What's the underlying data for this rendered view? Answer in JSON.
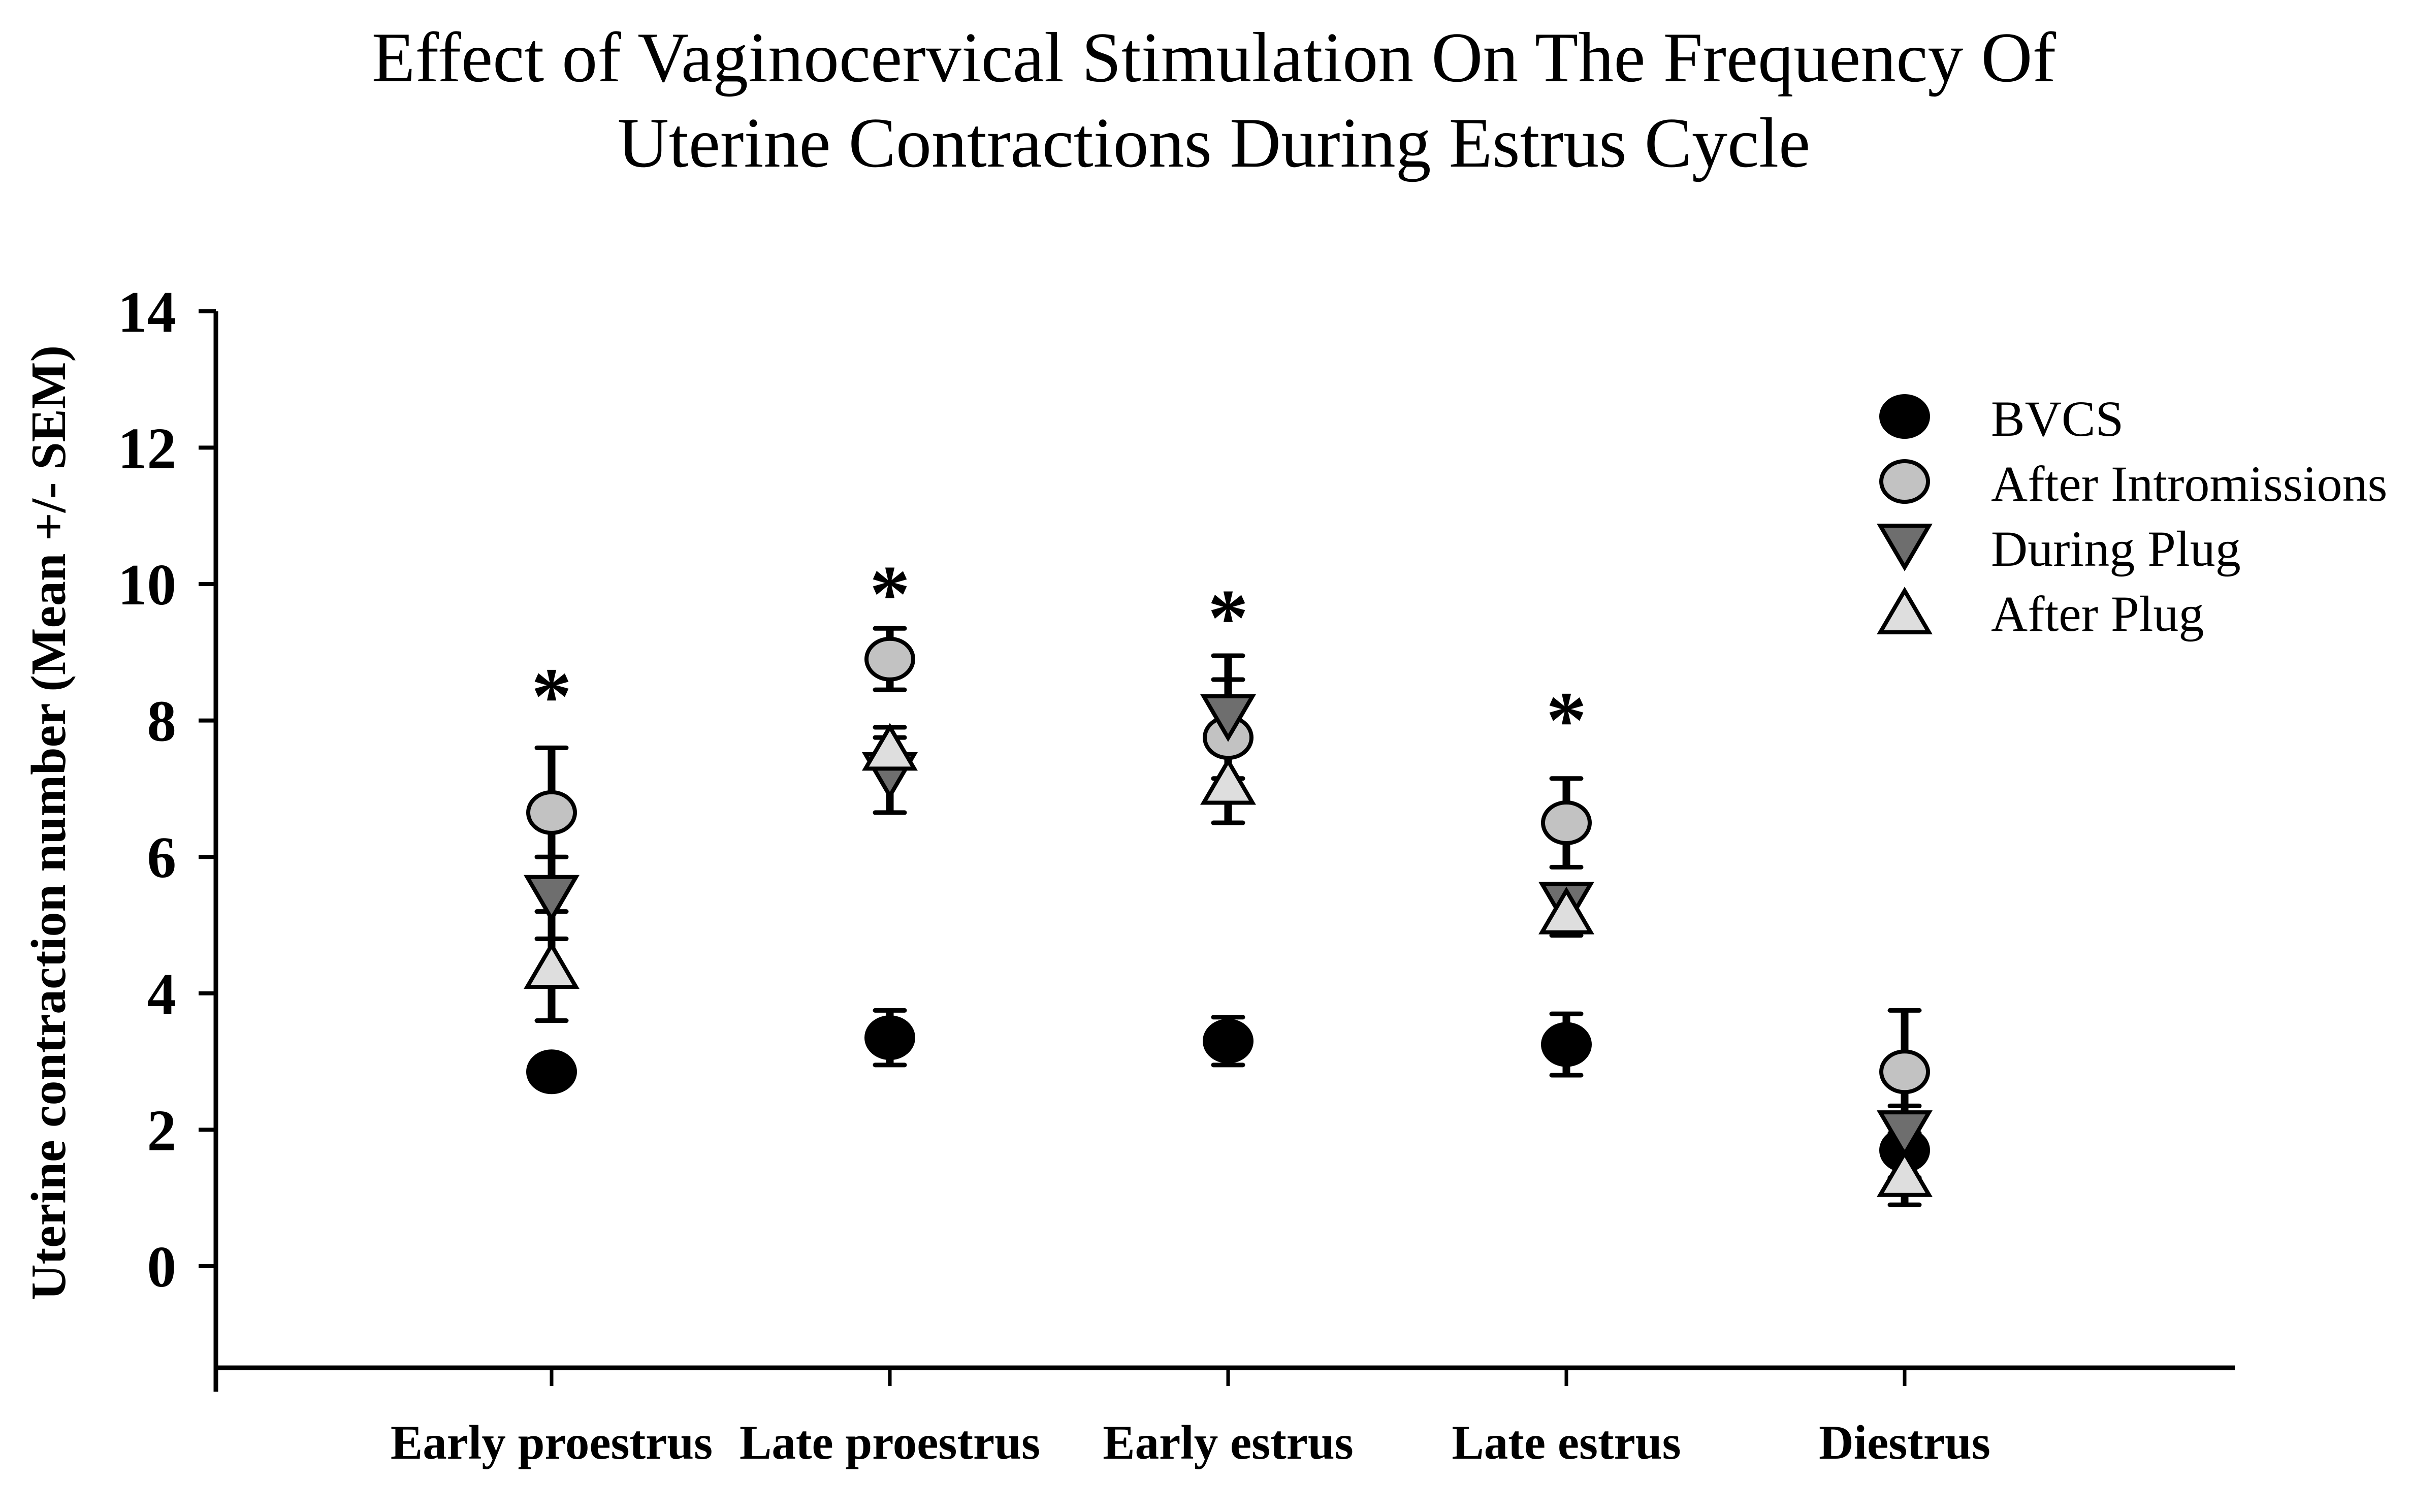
{
  "title": {
    "line1": "Effect of Vaginocervical Stimulation On The Frequency Of",
    "line2": "Uterine Contractions During Estrus Cycle"
  },
  "chart_data": {
    "type": "scatter",
    "title": "Effect of Vaginocervical Stimulation On The Frequency Of Uterine Contractions During Estrus Cycle",
    "ylabel": "Uterine contraction number (Mean +/- SEM)",
    "xlabel": "",
    "ylim": [
      -1.5,
      14
    ],
    "yticks": [
      0,
      2,
      4,
      6,
      8,
      10,
      12,
      14
    ],
    "grid": false,
    "legend_position": "upper right",
    "error_bars": "SEM",
    "categories": [
      "Early proestrus",
      "Late proestrus",
      "Early estrus",
      "Late estrus",
      "Diestrus"
    ],
    "series": [
      {
        "name": "BVCS",
        "marker": "circle",
        "fill": "#000000",
        "values": [
          2.85,
          3.35,
          3.3,
          3.25,
          1.7
        ],
        "sem": [
          0,
          0.4,
          0.35,
          0.45,
          0.4
        ]
      },
      {
        "name": "After Intromissions",
        "marker": "circle",
        "fill": "#c2c2c2",
        "values": [
          6.65,
          8.9,
          7.75,
          6.5,
          2.85
        ],
        "sem": [
          0.95,
          0.45,
          0.85,
          0.65,
          0.9
        ]
      },
      {
        "name": "During Plug",
        "marker": "triangle-down",
        "fill": "#6e6e6e",
        "values": [
          5.4,
          7.2,
          8.05,
          5.3,
          1.95
        ],
        "sem": [
          0.6,
          0.55,
          0.9,
          0.3,
          0.4
        ]
      },
      {
        "name": "After Plug",
        "marker": "triangle-up",
        "fill": "#dedede",
        "values": [
          4.4,
          7.6,
          7.1,
          5.2,
          1.35
        ],
        "sem": [
          0.8,
          0.3,
          0.6,
          0.35,
          0.45
        ]
      }
    ],
    "significance": {
      "symbol": "*",
      "y_values": [
        8.5,
        10.0,
        9.65,
        8.15,
        null
      ]
    }
  }
}
